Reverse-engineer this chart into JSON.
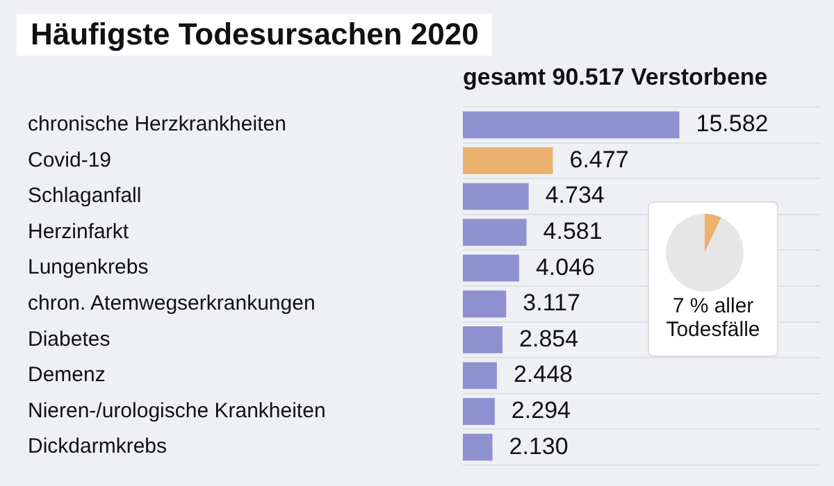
{
  "chart_data": [
    {
      "type": "bar",
      "orientation": "horizontal",
      "title": "Häufigste Todesursachen 2020",
      "subtitle": "gesamt 90.517 Verstorbene",
      "categories": [
        "chronische Herzkrankheiten",
        "Covid-19",
        "Schlaganfall",
        "Herzinfarkt",
        "Lungenkrebs",
        "chron. Atemwegserkrankungen",
        "Diabetes",
        "Demenz",
        "Nieren-/urologische Krankheiten",
        "Dickdarmkrebs"
      ],
      "values": [
        15582,
        6477,
        4734,
        4581,
        4046,
        3117,
        2854,
        2448,
        2294,
        2130
      ],
      "colors": [
        "#8e91cf",
        "#ebb26e",
        "#8e91cf",
        "#8e91cf",
        "#8e91cf",
        "#8e91cf",
        "#8e91cf",
        "#8e91cf",
        "#8e91cf",
        "#8e91cf"
      ],
      "value_labels": [
        "15.582",
        "6.477",
        "4.734",
        "4.581",
        "4.046",
        "3.117",
        "2.854",
        "2.448",
        "2.294",
        "2.130"
      ],
      "grid": "y",
      "tick_labels": "y"
    },
    {
      "type": "pie",
      "categories": [
        null,
        null
      ],
      "values": [
        7,
        93
      ],
      "colors": [
        "#ebb26e",
        "#e6e6e6"
      ],
      "annotations": [
        "7 % aller Todesfälle"
      ]
    }
  ]
}
